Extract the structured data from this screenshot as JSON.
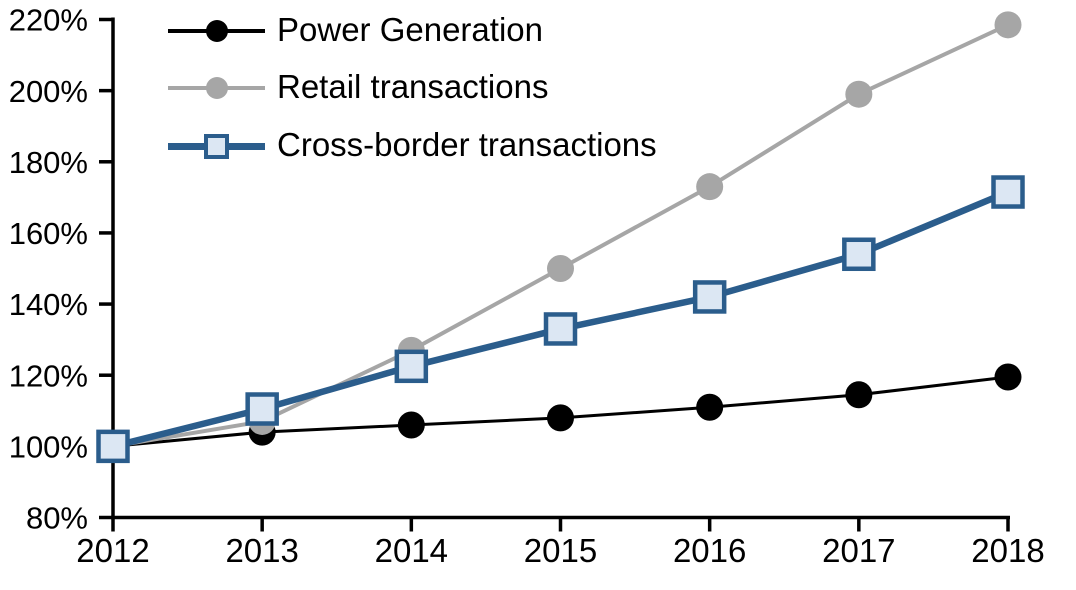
{
  "chart_data": {
    "type": "line",
    "title": "",
    "xlabel": "",
    "ylabel": "",
    "x": [
      2012,
      2013,
      2014,
      2015,
      2016,
      2017,
      2018
    ],
    "x_tick_labels": [
      "2012",
      "2013",
      "2014",
      "2015",
      "2016",
      "2017",
      "2018"
    ],
    "y_axis": {
      "min": 80,
      "max": 220,
      "step": 20,
      "tick_labels": [
        "80%",
        "100%",
        "120%",
        "140%",
        "160%",
        "180%",
        "200%",
        "220%"
      ],
      "unit": "%"
    },
    "grid": false,
    "legend_position": "top-left",
    "series": [
      {
        "name": "Power Generation",
        "values": [
          100,
          104,
          106,
          108,
          111,
          114.5,
          119.5
        ],
        "color": "#000000",
        "marker": "circle",
        "marker_fill": "#000000",
        "line_width": 3
      },
      {
        "name": "Retail transactions",
        "values": [
          100,
          107,
          127,
          150,
          173,
          199,
          218.5
        ],
        "color": "#a6a6a6",
        "marker": "circle",
        "marker_fill": "#a6a6a6",
        "line_width": 4
      },
      {
        "name": "Cross-border transactions",
        "values": [
          100,
          110.5,
          122.5,
          133,
          142,
          154,
          171.5
        ],
        "color": "#2b5d8c",
        "marker": "square",
        "marker_fill": "#dce7f3",
        "line_width": 6.5
      }
    ],
    "colors": {
      "axis": "#000000",
      "background": "#ffffff",
      "tick_label": "#000000"
    }
  }
}
